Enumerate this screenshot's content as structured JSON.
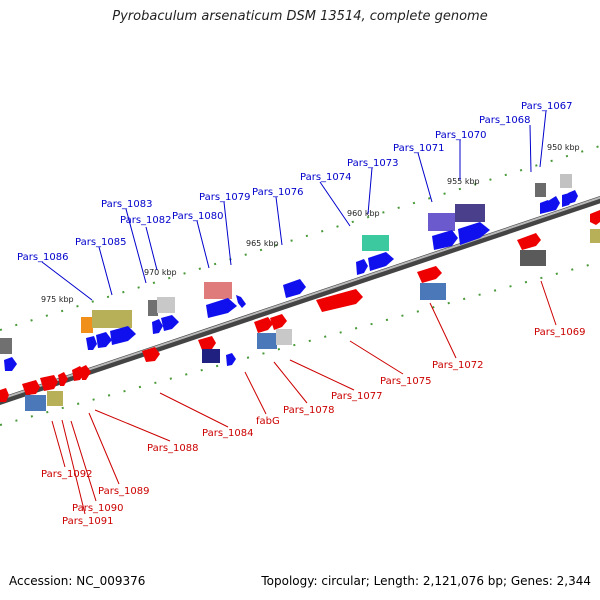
{
  "title": "Pyrobaculum arsenaticum DSM 13514, complete genome",
  "footer": {
    "accession": "Accession: NC_009376",
    "summary": "Topology: circular; Length: 2,121,076 bp; Genes: 2,344"
  },
  "ticks": [
    "950 kbp",
    "955 kbp",
    "960 kbp",
    "965 kbp",
    "970 kbp",
    "975 kbp"
  ],
  "labels_top": [
    "Pars_1067",
    "Pars_1068",
    "Pars_1070",
    "Pars_1071",
    "Pars_1073",
    "Pars_1074",
    "Pars_1076",
    "Pars_1079",
    "Pars_1080",
    "Pars_1082",
    "Pars_1083",
    "Pars_1085",
    "Pars_1086"
  ],
  "labels_bottom": [
    "Pars_1069",
    "Pars_1072",
    "Pars_1075",
    "Pars_1077",
    "Pars_1078",
    "fabG",
    "Pars_1084",
    "Pars_1088",
    "Pars_1089",
    "Pars_1090",
    "Pars_1091",
    "Pars_1092"
  ]
}
